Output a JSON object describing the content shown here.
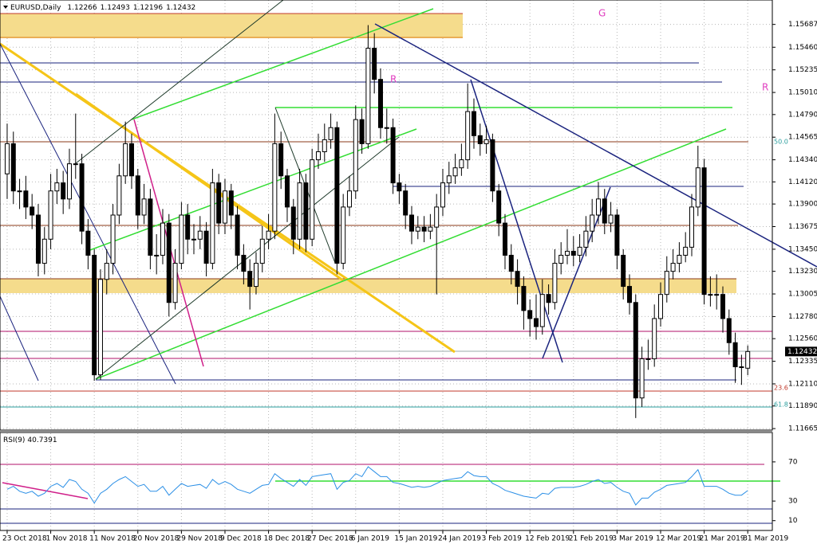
{
  "chart_data": [
    {
      "type": "candlestick",
      "title": "EURUSD,Daily",
      "open": [
        1.142,
        1.145,
        1.1403,
        1.1403,
        1.1387,
        1.1379,
        1.1331,
        1.1355,
        1.1403,
        1.1411,
        1.1395,
        1.143,
        1.143,
        1.1363,
        1.1339,
        1.122,
        1.1315,
        1.1331,
        1.1379,
        1.1418,
        1.145,
        1.1418,
        1.1379,
        1.1395,
        1.1339,
        1.1339,
        1.1371,
        1.1292,
        1.1331,
        1.1379,
        1.1355,
        1.1355,
        1.1363,
        1.1331,
        1.1411,
        1.1371,
        1.1403,
        1.1379,
        1.1339,
        1.1323,
        1.1308,
        1.1331,
        1.1355,
        1.1363,
        1.145,
        1.1418,
        1.1387,
        1.1355,
        1.1411,
        1.1355,
        1.1434,
        1.1442,
        1.1454,
        1.1466,
        1.1331,
        1.1387,
        1.1403,
        1.1474,
        1.145,
        1.1545,
        1.1514,
        1.1466,
        1.1466,
        1.1411,
        1.1403,
        1.1379,
        1.1363,
        1.1367,
        1.1363,
        1.1367,
        1.1387,
        1.1411,
        1.1418,
        1.1426,
        1.1434,
        1.1482,
        1.1458,
        1.145,
        1.1454,
        1.1403,
        1.1371,
        1.1339,
        1.1323,
        1.1308,
        1.1284,
        1.1276,
        1.1268,
        1.13,
        1.1292,
        1.1331,
        1.1339,
        1.1343,
        1.1339,
        1.1347,
        1.1363,
        1.1379,
        1.1395,
        1.1371,
        1.1379,
        1.1339,
        1.1308,
        1.1292,
        1.1197,
        1.1236,
        1.1236,
        1.1276,
        1.13,
        1.1323,
        1.1331,
        1.1339,
        1.1347,
        1.1387,
        1.1426,
        1.13,
        1.13,
        1.13,
        1.1276,
        1.1252,
        1.1228,
        1.12266
      ],
      "high": [
        1.147,
        1.1462,
        1.1415,
        1.1418,
        1.14,
        1.139,
        1.1367,
        1.142,
        1.1425,
        1.1423,
        1.1445,
        1.148,
        1.144,
        1.1375,
        1.1345,
        1.1325,
        1.1345,
        1.139,
        1.143,
        1.1472,
        1.146,
        1.1425,
        1.141,
        1.1405,
        1.136,
        1.1385,
        1.138,
        1.1345,
        1.1392,
        1.139,
        1.137,
        1.1378,
        1.1372,
        1.1425,
        1.142,
        1.1415,
        1.141,
        1.1388,
        1.135,
        1.1335,
        1.1342,
        1.1368,
        1.138,
        1.148,
        1.1462,
        1.1425,
        1.1395,
        1.1425,
        1.142,
        1.1445,
        1.146,
        1.147,
        1.148,
        1.1472,
        1.14,
        1.1418,
        1.1488,
        1.1485,
        1.1568,
        1.156,
        1.1525,
        1.1485,
        1.1475,
        1.142,
        1.141,
        1.1388,
        1.1378,
        1.1378,
        1.138,
        1.14,
        1.1425,
        1.1432,
        1.144,
        1.145,
        1.151,
        1.1495,
        1.147,
        1.1468,
        1.146,
        1.141,
        1.138,
        1.135,
        1.1335,
        1.1318,
        1.1295,
        1.13,
        1.1315,
        1.131,
        1.1345,
        1.1352,
        1.1365,
        1.1358,
        1.136,
        1.1378,
        1.1395,
        1.1412,
        1.1405,
        1.1392,
        1.1385,
        1.1345,
        1.132,
        1.13,
        1.1248,
        1.1255,
        1.129,
        1.1312,
        1.1338,
        1.1345,
        1.1352,
        1.1362,
        1.14,
        1.1448,
        1.1435,
        1.1318,
        1.132,
        1.1308,
        1.1285,
        1.1262,
        1.124,
        1.12493
      ],
      "low": [
        1.1395,
        1.139,
        1.1385,
        1.1375,
        1.1365,
        1.1318,
        1.132,
        1.1345,
        1.139,
        1.138,
        1.1385,
        1.1415,
        1.135,
        1.1325,
        1.1214,
        1.1215,
        1.13,
        1.132,
        1.137,
        1.141,
        1.1405,
        1.1365,
        1.137,
        1.1325,
        1.132,
        1.133,
        1.1278,
        1.1285,
        1.1325,
        1.134,
        1.134,
        1.1345,
        1.1318,
        1.1325,
        1.136,
        1.136,
        1.1365,
        1.1325,
        1.131,
        1.1285,
        1.13,
        1.1322,
        1.1345,
        1.1355,
        1.1405,
        1.1372,
        1.134,
        1.1345,
        1.1342,
        1.1348,
        1.1425,
        1.1432,
        1.1445,
        1.132,
        1.1325,
        1.1378,
        1.1395,
        1.144,
        1.1445,
        1.15,
        1.1455,
        1.145,
        1.14,
        1.139,
        1.1365,
        1.135,
        1.1355,
        1.1352,
        1.1355,
        1.13,
        1.1378,
        1.14,
        1.141,
        1.1418,
        1.1425,
        1.1445,
        1.1438,
        1.144,
        1.1392,
        1.1358,
        1.1325,
        1.131,
        1.129,
        1.1265,
        1.1258,
        1.1255,
        1.126,
        1.128,
        1.1285,
        1.132,
        1.133,
        1.1328,
        1.1332,
        1.1338,
        1.1352,
        1.137,
        1.136,
        1.1362,
        1.1325,
        1.1295,
        1.128,
        1.1177,
        1.1188,
        1.1225,
        1.1228,
        1.1268,
        1.1292,
        1.1315,
        1.1322,
        1.1332,
        1.1338,
        1.1378,
        1.129,
        1.1288,
        1.1285,
        1.1262,
        1.124,
        1.1212,
        1.121,
        1.12196
      ],
      "close": [
        1.145,
        1.1403,
        1.1403,
        1.1387,
        1.1379,
        1.1331,
        1.1355,
        1.1403,
        1.1411,
        1.1395,
        1.143,
        1.143,
        1.1363,
        1.1339,
        1.122,
        1.1315,
        1.1331,
        1.1379,
        1.1418,
        1.145,
        1.1418,
        1.1379,
        1.1395,
        1.1339,
        1.1339,
        1.1371,
        1.1292,
        1.1331,
        1.1379,
        1.1355,
        1.1355,
        1.1363,
        1.1331,
        1.1411,
        1.1371,
        1.1403,
        1.1379,
        1.1339,
        1.1323,
        1.1308,
        1.1331,
        1.1355,
        1.1363,
        1.145,
        1.1418,
        1.1387,
        1.1355,
        1.1411,
        1.1355,
        1.1434,
        1.1442,
        1.1454,
        1.1466,
        1.1331,
        1.1387,
        1.1403,
        1.1474,
        1.145,
        1.1545,
        1.1514,
        1.1466,
        1.1466,
        1.1411,
        1.1403,
        1.1379,
        1.1363,
        1.1367,
        1.1363,
        1.1367,
        1.1387,
        1.1411,
        1.1418,
        1.1426,
        1.1434,
        1.1482,
        1.1458,
        1.145,
        1.1454,
        1.1403,
        1.1371,
        1.1339,
        1.1323,
        1.1308,
        1.1284,
        1.1276,
        1.1268,
        1.13,
        1.1292,
        1.1331,
        1.1339,
        1.1343,
        1.1339,
        1.1347,
        1.1363,
        1.1379,
        1.1395,
        1.1371,
        1.1379,
        1.1339,
        1.1308,
        1.1292,
        1.1197,
        1.1236,
        1.1236,
        1.1276,
        1.13,
        1.1323,
        1.1331,
        1.1339,
        1.1347,
        1.1387,
        1.1426,
        1.13,
        1.13,
        1.13,
        1.1276,
        1.1252,
        1.1228,
        1.1228,
        1.12432
      ],
      "xlim": [
        -1.15,
        122.95
      ],
      "xticks": [
        {
          "value": 0,
          "label": "23 Oct 2018"
        },
        {
          "value": 7,
          "label": "1 Nov 2018"
        },
        {
          "value": 14,
          "label": "11 Nov 2018"
        },
        {
          "value": 21,
          "label": "20 Nov 2018"
        },
        {
          "value": 28,
          "label": "29 Nov 2018"
        },
        {
          "value": 35,
          "label": "9 Dec 2018"
        },
        {
          "value": 42,
          "label": "18 Dec 2018"
        },
        {
          "value": 49,
          "label": "27 Dec 2018"
        },
        {
          "value": 56,
          "label": "6 Jan 2019"
        },
        {
          "value": 63,
          "label": "15 Jan 2019"
        },
        {
          "value": 70,
          "label": "24 Jan 2019"
        },
        {
          "value": 77,
          "label": "3 Feb 2019"
        },
        {
          "value": 84,
          "label": "12 Feb 2019"
        },
        {
          "value": 91,
          "label": "21 Feb 2019"
        },
        {
          "value": 98,
          "label": "3 Mar 2019"
        },
        {
          "value": 105,
          "label": "12 Mar 2019"
        },
        {
          "value": 112,
          "label": "21 Mar 2019"
        },
        {
          "value": 119,
          "label": "31 Mar 2019"
        }
      ],
      "ylim": [
        1.1165,
        1.1593
      ],
      "yticks": [
        1.15687,
        {
          "value": 1.1546,
          "label": "1.15460"
        },
        1.15235,
        {
          "value": 1.1501,
          "label": "1.15010"
        },
        {
          "value": 1.1479,
          "label": "1.14790"
        },
        1.14565,
        {
          "value": 1.1434,
          "label": "1.14340"
        },
        {
          "value": 1.1412,
          "label": "1.14120"
        },
        {
          "value": 1.139,
          "label": "1.13900"
        },
        1.13675,
        {
          "value": 1.1345,
          "label": "1.13450"
        },
        {
          "value": 1.1323,
          "label": "1.13230"
        },
        1.13005,
        {
          "value": 1.1278,
          "label": "1.12780"
        },
        {
          "value": 1.1256,
          "label": "1.12560"
        },
        1.12335,
        {
          "value": 1.1211,
          "label": "1.12110"
        },
        {
          "value": 1.1189,
          "label": "1.11890"
        },
        1.11665
      ],
      "grid": true,
      "up_color": "#ffffff",
      "down_color": "#000000",
      "annotations": [
        "50.0",
        "23.6",
        "61.8",
        "G",
        "R",
        "R"
      ]
    },
    {
      "type": "line",
      "title": "RSI(9)",
      "color": "#2b8fe6",
      "values": [
        42,
        45,
        40,
        38,
        40,
        35,
        38,
        45,
        48,
        44,
        52,
        50,
        42,
        38,
        28,
        38,
        42,
        48,
        52,
        55,
        50,
        45,
        47,
        40,
        40,
        45,
        36,
        42,
        48,
        45,
        46,
        47,
        43,
        52,
        47,
        50,
        47,
        42,
        40,
        38,
        42,
        46,
        47,
        58,
        53,
        49,
        45,
        52,
        46,
        55,
        56,
        57,
        58,
        42,
        49,
        51,
        58,
        55,
        65,
        60,
        55,
        55,
        49,
        48,
        46,
        44,
        45,
        44,
        45,
        48,
        51,
        52,
        53,
        54,
        60,
        56,
        55,
        55,
        48,
        45,
        41,
        39,
        37,
        35,
        34,
        33,
        38,
        37,
        43,
        44,
        44,
        44,
        45,
        47,
        50,
        52,
        48,
        49,
        44,
        40,
        38,
        26,
        33,
        33,
        39,
        42,
        46,
        47,
        48,
        49,
        55,
        62,
        45,
        45,
        45,
        42,
        38,
        36,
        36,
        40.7391
      ],
      "xlim": [
        -1.15,
        122.95
      ],
      "ylim": [
        0,
        100
      ],
      "yticks": [
        70,
        30,
        10
      ]
    }
  ]
}
